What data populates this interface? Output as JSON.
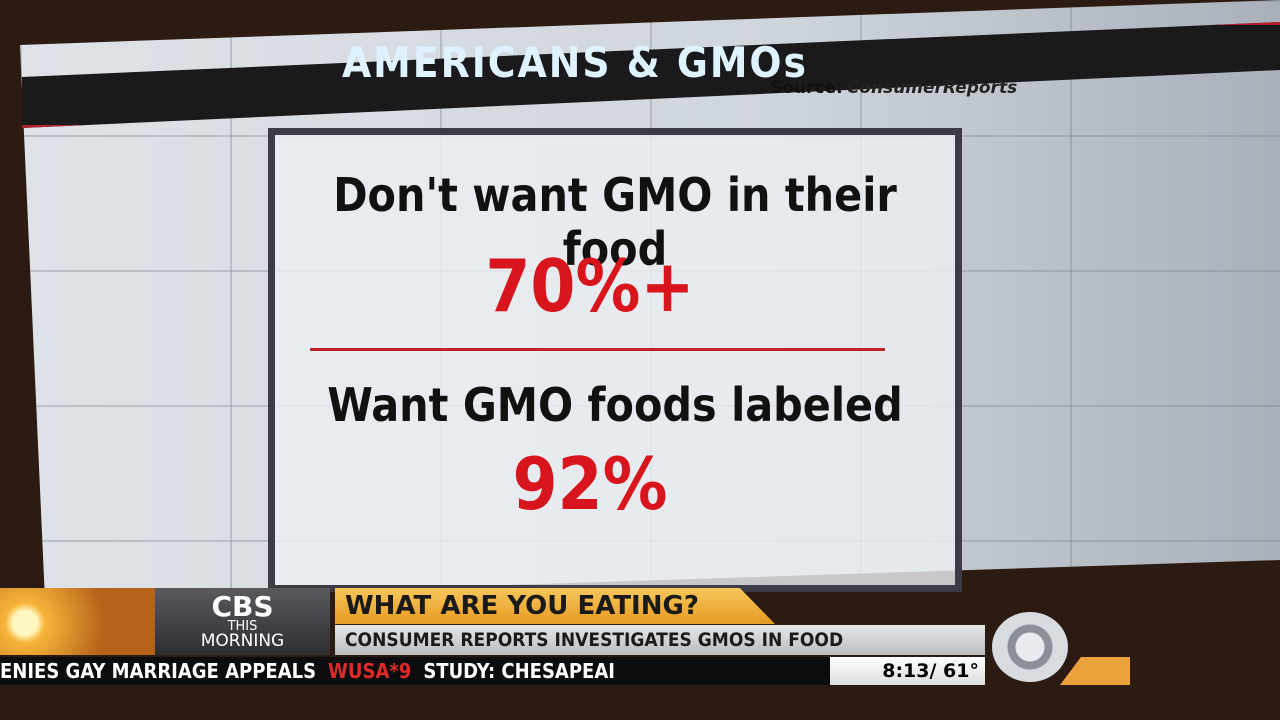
{
  "screen": {
    "title": "AMERICANS & GMOs",
    "source_label": "Source:",
    "source_name": "ConsumerReports",
    "stats": [
      {
        "label": "Don't want GMO in their food",
        "value": "70%+"
      },
      {
        "label": "Want GMO foods labeled",
        "value": "92%"
      }
    ]
  },
  "lower_third": {
    "network": "CBS",
    "show_line1": "THIS",
    "show_line2": "MORNING",
    "headline": "WHAT ARE YOU EATING?",
    "subheadline": "CONSUMER REPORTS INVESTIGATES GMOS IN FOOD"
  },
  "ticker": {
    "text": "ENIES GAY MARRIAGE APPEALS",
    "station": "WUSA*9",
    "text2": "STUDY: CHESAPEAI",
    "time": "8:13/",
    "temp": "61°"
  }
}
